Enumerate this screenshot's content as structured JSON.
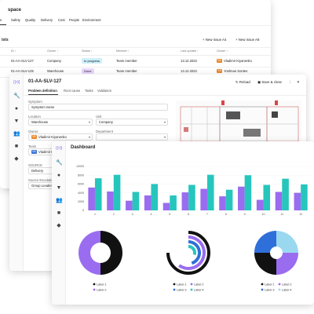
{
  "window1": {
    "title_partial": "space",
    "tabs": [
      "s",
      "Safety",
      "Quality",
      "Delivery",
      "Cost",
      "People",
      "Environment"
    ],
    "subtitle_partial": "ists",
    "btn_new_issue_a": "+  New issue A4",
    "btn_new_issue_b": "+  New issue A8",
    "columns": [
      "ID ↑",
      "Owner ↑",
      "Status ↑",
      "Member ↑",
      "Last update ↑",
      "Owner ↑"
    ],
    "rows": [
      {
        "id": "01-AA-SLV-127",
        "owner": "Company",
        "status": "In progress",
        "member": "Team member",
        "date": "13.12.2022",
        "initials": "VK",
        "person": "Vladimir Kiyanenko"
      },
      {
        "id": "01-AA-SLV-125",
        "owner": "Warehouse",
        "status": "Done",
        "member": "Team member",
        "date": "13.12.2022",
        "initials": "YS",
        "person": "Yoshnan Sontes"
      }
    ],
    "colors": {
      "in_progress": "#cdeffa",
      "done": "#ead8ff"
    }
  },
  "window2": {
    "title": "01-AA-SLV-127",
    "reload": "Reload",
    "save_close": "Save & close",
    "more": "⋮",
    "close": "✕",
    "tabs": [
      "Problem definition",
      "Root cause",
      "Tasks",
      "Validation"
    ],
    "fields": {
      "symptom_label": "Symptom",
      "symptom_value": "Symptom name",
      "location_label": "Location",
      "location_value": "Warehouse",
      "unit_label": "Unit",
      "unit_value": "Company",
      "owner_label": "Owner",
      "owner_value": "Vladimir Kiyanenko",
      "department_label": "Department",
      "department_value": "",
      "team_label": "Team",
      "team_value": "Vladimir Kiyanenko",
      "team_initials": "VK",
      "owner_initials": "VK",
      "source_label": "SOURCE",
      "source_value": "Delivery",
      "group_label": "Source Escalation",
      "group_value": "Group Leader"
    }
  },
  "window3": {
    "title": "Dashboard",
    "logo": "((•))"
  },
  "chart_data": [
    {
      "type": "bar",
      "title": "",
      "categories": [
        "1",
        "2",
        "3",
        "4",
        "5",
        "6",
        "7",
        "8",
        "9",
        "10",
        "11",
        "12"
      ],
      "series": [
        {
          "values": [
            5200,
            4300,
            2200,
            3400,
            1700,
            4100,
            4900,
            3200,
            5400,
            2400,
            4200,
            4000
          ]
        },
        {
          "values": [
            7300,
            8100,
            4200,
            6000,
            3400,
            5800,
            8100,
            4700,
            8000,
            5800,
            7200,
            5900
          ]
        }
      ],
      "yticks": [
        "10000",
        "8000",
        "6000",
        "4000",
        "2000",
        "0"
      ],
      "ylim": [
        0,
        10000
      ],
      "colors": [
        "#9a6cf0",
        "#26c6bd"
      ]
    },
    {
      "type": "pie",
      "variant": "donut",
      "values": [
        50,
        50
      ],
      "legend": [
        "Label 1",
        "Label 2"
      ],
      "colors": [
        "#111111",
        "#9a6cf0"
      ]
    },
    {
      "type": "pie",
      "variant": "radial",
      "values": [
        75,
        60,
        45,
        30
      ],
      "legend": [
        "Label 1",
        "Label 2",
        "Label 3",
        "Label 4"
      ],
      "colors": [
        "#111111",
        "#9a6cf0",
        "#2f6fd9",
        "#26c6bd"
      ]
    },
    {
      "type": "pie",
      "values": [
        25,
        25,
        25,
        25
      ],
      "legend": [
        "Label 1",
        "Label 2",
        "Label 3",
        "Label 4"
      ],
      "colors": [
        "#111111",
        "#9a6cf0",
        "#2f6fd9",
        "#9ad8f0"
      ]
    }
  ]
}
